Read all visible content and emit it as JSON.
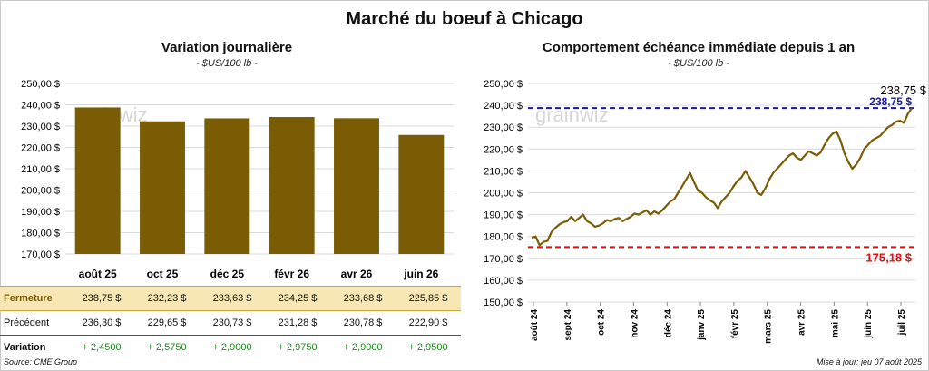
{
  "title": "Marché du boeuf à Chicago",
  "left_panel": {
    "title": "Variation  journalière",
    "subtitle": "- $US/100 lb -"
  },
  "right_panel": {
    "title": "Comportement  échéance immédiate depuis 1 an",
    "subtitle": "- $US/100 lb -"
  },
  "watermark": "grainwiz",
  "table": {
    "row_labels": {
      "close": "Fermeture",
      "previous": "Précédent",
      "variation": "Variation"
    },
    "close": [
      "238,75  $",
      "232,23  $",
      "233,63  $",
      "234,25  $",
      "233,68  $",
      "225,85  $"
    ],
    "previous": [
      "236,30  $",
      "229,65  $",
      "230,73  $",
      "231,28  $",
      "230,78  $",
      "222,90  $"
    ],
    "variation": [
      "+ 2,4500",
      "+ 2,5750",
      "+ 2,9000",
      "+ 2,9750",
      "+ 2,9000",
      "+ 2,9500"
    ]
  },
  "footer": {
    "source": "Source: CME Group",
    "updated": "Mise à jour: jeu 07 août 2025"
  },
  "colors": {
    "bar": "#7a5c04",
    "line": "#7a5c04",
    "high_line": "#1a1aa0",
    "low_line": "#e01010",
    "close_label": "#7a5a00",
    "variation": "#1e8a1e"
  },
  "chart_data": [
    {
      "type": "bar",
      "categories": [
        "août 25",
        "oct 25",
        "déc 25",
        "févr 26",
        "avr 26",
        "juin 26"
      ],
      "values": [
        238.75,
        232.23,
        233.63,
        234.25,
        233.68,
        225.85
      ],
      "ylim": [
        170,
        250
      ],
      "yticks": [
        170,
        180,
        190,
        200,
        210,
        220,
        230,
        240,
        250
      ],
      "ytick_labels": [
        "170,00 $",
        "180,00 $",
        "190,00 $",
        "200,00 $",
        "210,00 $",
        "220,00 $",
        "230,00 $",
        "240,00 $",
        "250,00 $"
      ],
      "grid": true
    },
    {
      "type": "line",
      "x_labels": [
        "août 24",
        "sept 24",
        "oct 24",
        "nov 24",
        "déc 24",
        "janv 25",
        "févr 25",
        "mars 25",
        "avr 25",
        "mai 25",
        "juin 25",
        "juil 25"
      ],
      "values": [
        179.5,
        180,
        176,
        177.5,
        178,
        182,
        184,
        185.5,
        186.5,
        187,
        189,
        187,
        188.5,
        190,
        187,
        186,
        184.5,
        185,
        186,
        187.5,
        187,
        188,
        188.5,
        187,
        188,
        189,
        190.5,
        190,
        191,
        192,
        190,
        191.5,
        190.5,
        192,
        194,
        196,
        197,
        200,
        203,
        206,
        209,
        205,
        201,
        200,
        198,
        196.5,
        195.5,
        193,
        196,
        198,
        200,
        203,
        205.5,
        207,
        210,
        207,
        204,
        200,
        199,
        202,
        206,
        209,
        211,
        213,
        215,
        217,
        218,
        216,
        215,
        217,
        219,
        218,
        217,
        218.5,
        222,
        225,
        227,
        228,
        224,
        218,
        214,
        211,
        213,
        216,
        220,
        222,
        224,
        225,
        226,
        228,
        230,
        231,
        232.5,
        233,
        232,
        236,
        238.75
      ],
      "ylim": [
        150,
        250
      ],
      "yticks": [
        150,
        160,
        170,
        180,
        190,
        200,
        210,
        220,
        230,
        240,
        250
      ],
      "ytick_labels": [
        "150,00 $",
        "160,00 $",
        "170,00 $",
        "180,00 $",
        "190,00 $",
        "200,00 $",
        "210,00 $",
        "220,00 $",
        "230,00 $",
        "240,00 $",
        "250,00 $"
      ],
      "high": {
        "value": 238.75,
        "label": "238,75 $"
      },
      "low": {
        "value": 175.18,
        "label": "175,18 $"
      },
      "last_label": "238,75  $",
      "grid": true
    }
  ]
}
